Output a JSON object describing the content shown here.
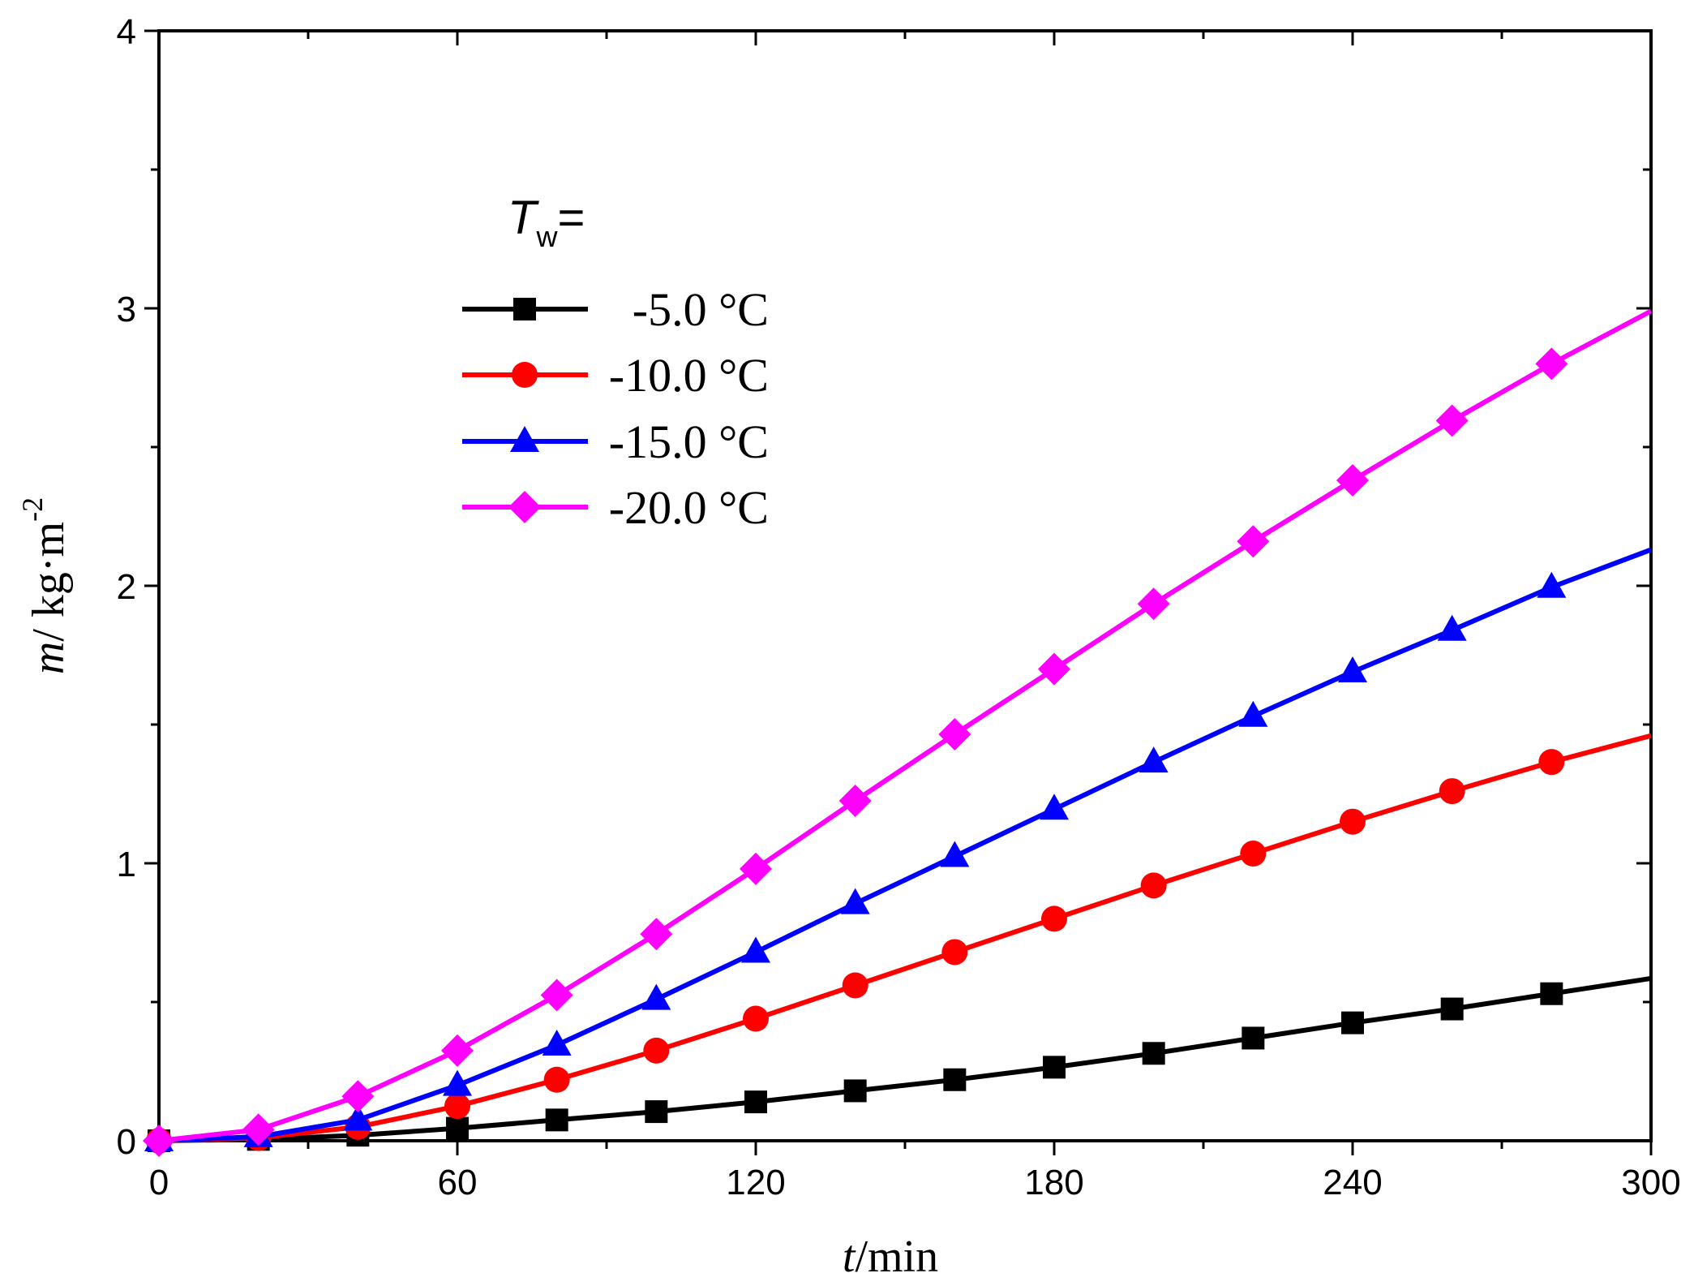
{
  "chart_data": {
    "type": "line",
    "xlabel_italic": "t",
    "xlabel_rest": "/min",
    "ylabel_italic": "m",
    "ylabel_rest": "/ kg·m",
    "ylabel_sup": "-2",
    "xlim": [
      0,
      300
    ],
    "ylim": [
      0,
      4
    ],
    "xticks": [
      0,
      60,
      120,
      180,
      240,
      300
    ],
    "yticks": [
      0,
      1,
      2,
      3,
      4
    ],
    "legend": {
      "title_main": "T",
      "title_sub": "w",
      "title_suffix": "=",
      "position": "upper-left"
    },
    "x": [
      0,
      20,
      40,
      60,
      80,
      100,
      120,
      140,
      160,
      180,
      200,
      220,
      240,
      260,
      280,
      300
    ],
    "series": [
      {
        "name": "-5.0 °C",
        "color": "#000000",
        "marker": "square",
        "values": [
          0.0,
          0.005,
          0.02,
          0.045,
          0.075,
          0.105,
          0.14,
          0.18,
          0.22,
          0.265,
          0.315,
          0.37,
          0.425,
          0.475,
          0.53,
          0.585
        ]
      },
      {
        "name": "-10.0 °C",
        "color": "#ff0000",
        "marker": "circle",
        "values": [
          0.0,
          0.01,
          0.05,
          0.125,
          0.22,
          0.325,
          0.44,
          0.56,
          0.68,
          0.8,
          0.92,
          1.035,
          1.15,
          1.26,
          1.365,
          1.46
        ]
      },
      {
        "name": "-15.0 °C",
        "color": "#0000ff",
        "marker": "triangle",
        "values": [
          0.0,
          0.015,
          0.075,
          0.2,
          0.345,
          0.51,
          0.68,
          0.855,
          1.025,
          1.195,
          1.365,
          1.53,
          1.69,
          1.84,
          1.995,
          2.13
        ]
      },
      {
        "name": "-20.0 °C",
        "color": "#ff00ff",
        "marker": "diamond",
        "values": [
          0.0,
          0.04,
          0.16,
          0.325,
          0.525,
          0.745,
          0.98,
          1.225,
          1.465,
          1.7,
          1.935,
          2.16,
          2.38,
          2.595,
          2.8,
          2.99
        ]
      }
    ]
  }
}
